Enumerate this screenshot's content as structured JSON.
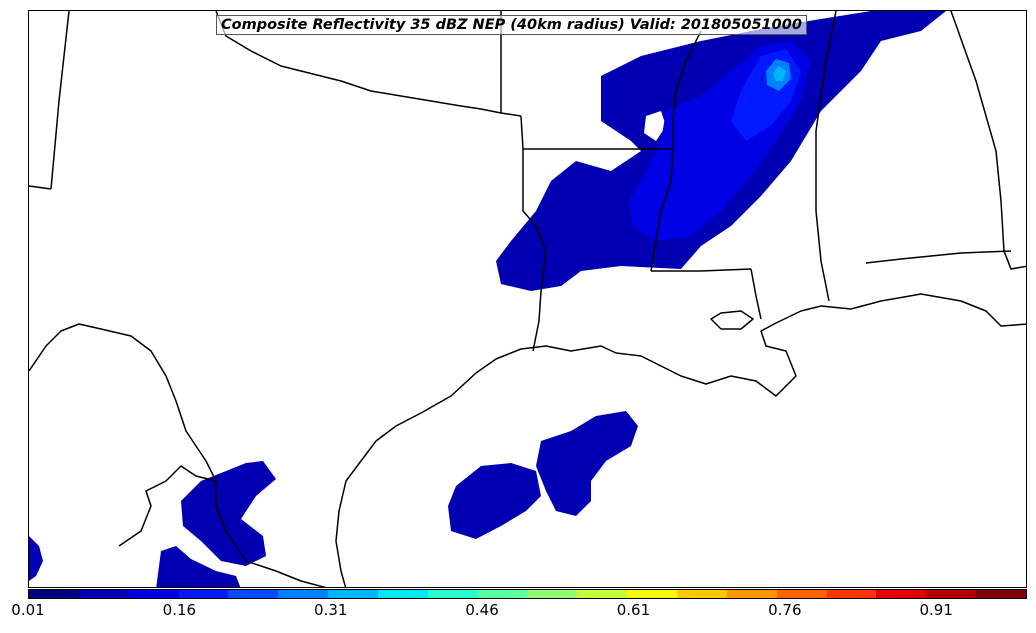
{
  "title": "Composite Reflectivity 35 dBZ NEP (40km radius) Valid: 201805051000",
  "colorbar": {
    "min": 0.01,
    "max": 1.0,
    "tick_labels": [
      "0.01",
      "0.16",
      "0.31",
      "0.46",
      "0.61",
      "0.76",
      "0.91"
    ],
    "colors": [
      "#00007f",
      "#0000b2",
      "#0000e5",
      "#0019ff",
      "#004dff",
      "#0081ff",
      "#00b5ff",
      "#00e9f7",
      "#29ffce",
      "#5cffa0",
      "#8fff6d",
      "#c3ff3a",
      "#f6f90b",
      "#ffc800",
      "#ff9600",
      "#ff6400",
      "#ff3200",
      "#e50000",
      "#b20000",
      "#7f0000"
    ]
  }
}
